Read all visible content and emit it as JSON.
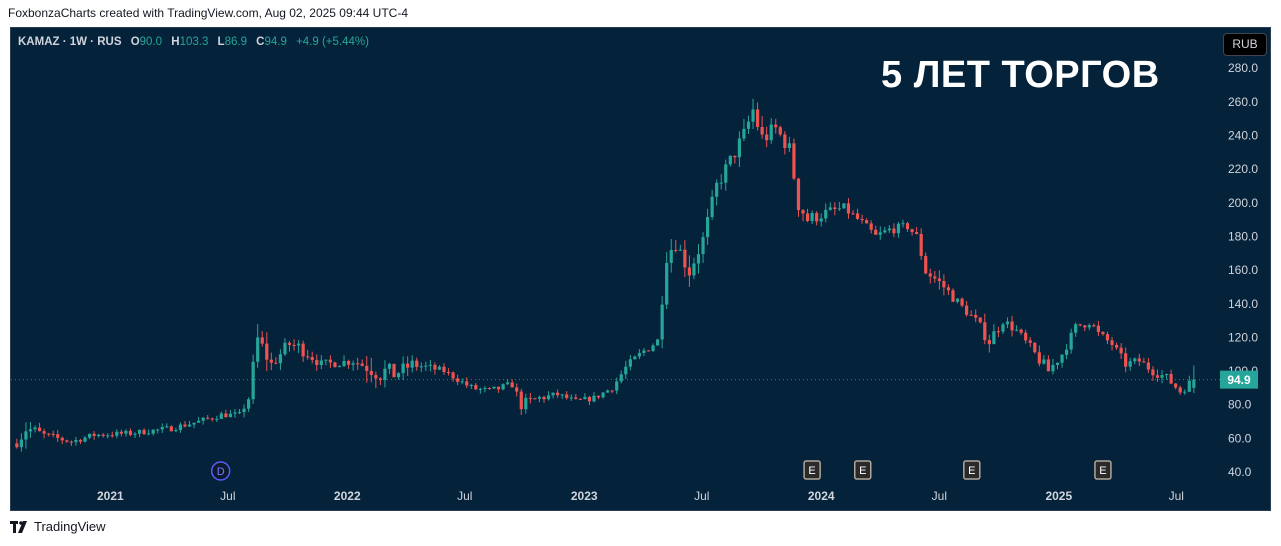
{
  "caption": "FoxbonzaCharts created with TradingView.com, Aug 02, 2025 09:44 UTC-4",
  "legend": {
    "symbol": "KAMAZ · 1W · RUS",
    "o_label": "O",
    "o_value": "90.0",
    "h_label": "H",
    "h_value": "103.3",
    "l_label": "L",
    "l_value": "86.9",
    "c_label": "C",
    "c_value": "94.9",
    "change": "+4.9 (+5.44%)"
  },
  "currency_button": "RUB",
  "headline": "5 ЛЕТ ТОРГОВ",
  "footer_brand": "TradingView",
  "colors": {
    "up": "#26a69a",
    "down": "#ef5350",
    "background": "#04223a",
    "price_tag": "#26a69a"
  },
  "chart_data": {
    "type": "candlestick",
    "interval": "1W",
    "ylim": [
      35,
      290
    ],
    "y_ticks": [
      "40.0",
      "60.0",
      "80.0",
      "100.0",
      "120.0",
      "140.0",
      "160.0",
      "180.0",
      "200.0",
      "220.0",
      "240.0",
      "260.0",
      "280.0"
    ],
    "x_ticks": [
      {
        "date": "2021-01-01",
        "label": "2021"
      },
      {
        "date": "2021-07-01",
        "label": "Jul"
      },
      {
        "date": "2022-01-01",
        "label": "2022"
      },
      {
        "date": "2022-07-01",
        "label": "Jul"
      },
      {
        "date": "2023-01-01",
        "label": "2023"
      },
      {
        "date": "2023-07-01",
        "label": "Jul"
      },
      {
        "date": "2024-01-01",
        "label": "2024"
      },
      {
        "date": "2024-07-01",
        "label": "Jul"
      },
      {
        "date": "2025-01-01",
        "label": "2025"
      },
      {
        "date": "2025-07-01",
        "label": "Jul"
      }
    ],
    "x_range": [
      "2020-08-01",
      "2025-11-10"
    ],
    "last_price": 94.9,
    "last_price_label": "94.9",
    "event_markers": [
      {
        "date": "2021-06-20",
        "label": "D",
        "kind": "dividend"
      },
      {
        "date": "2023-12-18",
        "label": "E",
        "kind": "earnings"
      },
      {
        "date": "2024-03-05",
        "label": "E",
        "kind": "earnings"
      },
      {
        "date": "2024-08-20",
        "label": "E",
        "kind": "earnings"
      },
      {
        "date": "2025-03-10",
        "label": "E",
        "kind": "earnings"
      }
    ],
    "anchors": [
      [
        "2020-08-10",
        57,
        5
      ],
      [
        "2020-08-24",
        66,
        12
      ],
      [
        "2020-09-21",
        62,
        5
      ],
      [
        "2020-11-02",
        58,
        4
      ],
      [
        "2020-12-07",
        62,
        4
      ],
      [
        "2021-02-01",
        63,
        4
      ],
      [
        "2021-04-05",
        66,
        4
      ],
      [
        "2021-05-17",
        70,
        4
      ],
      [
        "2021-06-21",
        74,
        4
      ],
      [
        "2021-07-19",
        74,
        4
      ],
      [
        "2021-08-02",
        84,
        8
      ],
      [
        "2021-08-16",
        118,
        18
      ],
      [
        "2021-09-06",
        104,
        8
      ],
      [
        "2021-10-04",
        116,
        10
      ],
      [
        "2021-10-25",
        113,
        10
      ],
      [
        "2021-11-22",
        104,
        6
      ],
      [
        "2022-01-10",
        106,
        6
      ],
      [
        "2022-02-21",
        100,
        18
      ],
      [
        "2022-03-14",
        98,
        10
      ],
      [
        "2022-04-11",
        104,
        8
      ],
      [
        "2022-05-30",
        100,
        4
      ],
      [
        "2022-06-20",
        95,
        4
      ],
      [
        "2022-07-11",
        90,
        5
      ],
      [
        "2022-08-08",
        88,
        5
      ],
      [
        "2022-09-12",
        92,
        5
      ],
      [
        "2022-09-26",
        80,
        8
      ],
      [
        "2022-10-24",
        84,
        6
      ],
      [
        "2022-11-21",
        86,
        4
      ],
      [
        "2022-12-19",
        82,
        4
      ],
      [
        "2023-01-16",
        84,
        4
      ],
      [
        "2023-02-13",
        90,
        4
      ],
      [
        "2023-03-06",
        102,
        6
      ],
      [
        "2023-04-03",
        112,
        6
      ],
      [
        "2023-04-24",
        118,
        6
      ],
      [
        "2023-05-08",
        170,
        14
      ],
      [
        "2023-05-22",
        176,
        10
      ],
      [
        "2023-06-12",
        160,
        14
      ],
      [
        "2023-07-03",
        178,
        10
      ],
      [
        "2023-07-24",
        210,
        10
      ],
      [
        "2023-08-14",
        225,
        10
      ],
      [
        "2023-09-04",
        240,
        12
      ],
      [
        "2023-09-18",
        255,
        14
      ],
      [
        "2023-10-02",
        238,
        14
      ],
      [
        "2023-10-23",
        244,
        10
      ],
      [
        "2023-11-13",
        232,
        10
      ],
      [
        "2023-11-27",
        200,
        14
      ],
      [
        "2023-12-11",
        190,
        10
      ],
      [
        "2024-01-08",
        194,
        8
      ],
      [
        "2024-02-05",
        197,
        6
      ],
      [
        "2024-03-04",
        188,
        6
      ],
      [
        "2024-03-25",
        180,
        6
      ],
      [
        "2024-04-15",
        184,
        6
      ],
      [
        "2024-05-13",
        186,
        6
      ],
      [
        "2024-05-27",
        180,
        6
      ],
      [
        "2024-06-10",
        160,
        12
      ],
      [
        "2024-07-08",
        150,
        8
      ],
      [
        "2024-08-05",
        138,
        6
      ],
      [
        "2024-08-26",
        130,
        6
      ],
      [
        "2024-09-16",
        118,
        10
      ],
      [
        "2024-10-07",
        130,
        6
      ],
      [
        "2024-10-28",
        124,
        6
      ],
      [
        "2024-11-25",
        110,
        8
      ],
      [
        "2024-12-16",
        100,
        8
      ],
      [
        "2025-01-06",
        110,
        6
      ],
      [
        "2025-01-27",
        126,
        6
      ],
      [
        "2025-02-17",
        130,
        8
      ],
      [
        "2025-03-03",
        122,
        6
      ],
      [
        "2025-03-24",
        116,
        6
      ],
      [
        "2025-04-14",
        104,
        6
      ],
      [
        "2025-05-05",
        106,
        6
      ],
      [
        "2025-05-26",
        100,
        6
      ],
      [
        "2025-06-16",
        96,
        6
      ],
      [
        "2025-07-07",
        88,
        6
      ],
      [
        "2025-07-28",
        95,
        6
      ]
    ],
    "final_candle": {
      "open": 90.0,
      "high": 103.3,
      "low": 86.9,
      "close": 94.9
    }
  }
}
